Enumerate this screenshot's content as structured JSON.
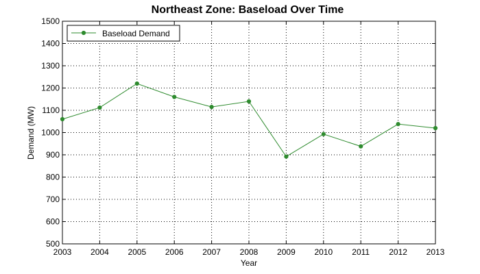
{
  "chart_data": {
    "type": "line",
    "title": "Northeast Zone: Baseload Over Time",
    "xlabel": "Year",
    "ylabel": "Demand (MW)",
    "x": [
      2003,
      2004,
      2005,
      2006,
      2007,
      2008,
      2009,
      2010,
      2011,
      2012,
      2013
    ],
    "x_tick_labels": [
      "2003",
      "2004",
      "2005",
      "2006",
      "2007",
      "2008",
      "2009",
      "2010",
      "2011",
      "2012",
      "2013"
    ],
    "y_ticks": [
      "500",
      "600",
      "700",
      "800",
      "900",
      "1000",
      "1100",
      "1200",
      "1300",
      "1400",
      "1500"
    ],
    "xlim": [
      2003,
      2013
    ],
    "ylim": [
      500,
      1500
    ],
    "grid": true,
    "legend_position": "top-left",
    "series": [
      {
        "name": "Baseload Demand",
        "color": "#2e8b2e",
        "values": [
          1060,
          1112,
          1220,
          1160,
          1115,
          1140,
          892,
          993,
          938,
          1038,
          1020
        ]
      }
    ]
  }
}
